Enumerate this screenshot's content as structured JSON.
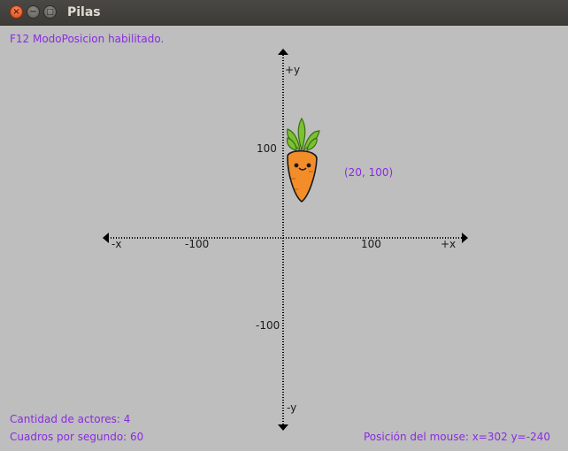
{
  "window": {
    "title": "Pilas",
    "buttons": [
      "close",
      "minimize",
      "maximize"
    ]
  },
  "overlay": {
    "mode_text": "F12 ModoPosicion habilitado.",
    "actors_count": "Cantidad de actores: 4",
    "fps": "Cuadros por segundo: 60",
    "mouse_position": "Posición del mouse: x=302 y=-240"
  },
  "axes": {
    "plus_y": "+y",
    "minus_y": "-y",
    "plus_x": "+x",
    "minus_x": "-x",
    "tick_x_neg": "-100",
    "tick_x_pos": "100",
    "tick_y_pos": "100",
    "tick_y_neg": "-100"
  },
  "actor": {
    "name": "carrot-actor",
    "coordinates_label": "(20, 100)"
  },
  "colors": {
    "overlay_text": "#8a2be2",
    "canvas_bg": "#bebebe",
    "titlebar": "#3c3b37"
  }
}
